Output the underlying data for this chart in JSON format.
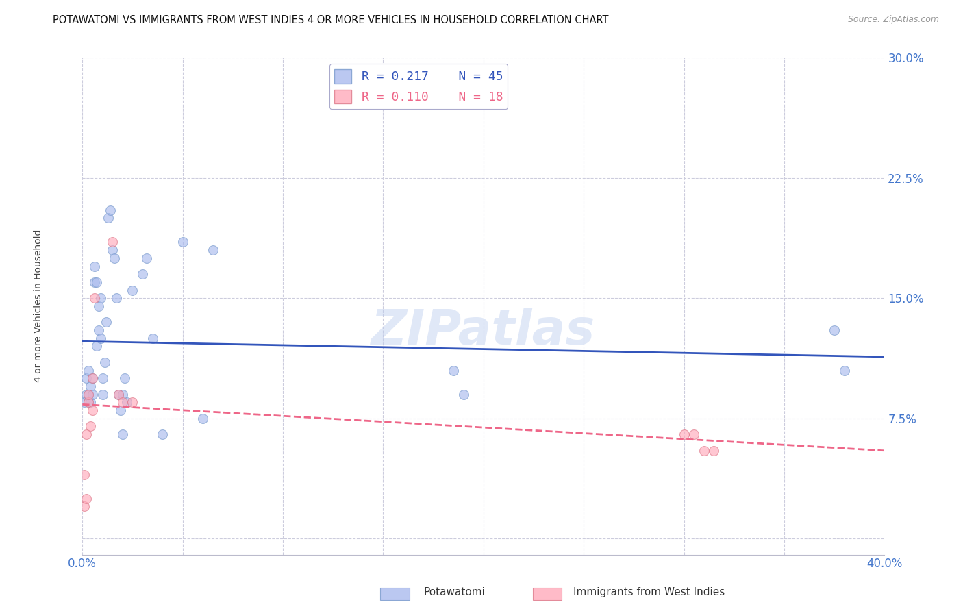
{
  "title": "POTAWATOMI VS IMMIGRANTS FROM WEST INDIES 4 OR MORE VEHICLES IN HOUSEHOLD CORRELATION CHART",
  "source": "Source: ZipAtlas.com",
  "ylabel": "4 or more Vehicles in Household",
  "xlim": [
    0.0,
    0.4
  ],
  "ylim": [
    -0.01,
    0.3
  ],
  "xticks": [
    0.0,
    0.05,
    0.1,
    0.15,
    0.2,
    0.25,
    0.3,
    0.35,
    0.4
  ],
  "yticks": [
    0.0,
    0.075,
    0.15,
    0.225,
    0.3
  ],
  "xtick_labels": [
    "0.0%",
    "",
    "",
    "",
    "",
    "",
    "",
    "",
    "40.0%"
  ],
  "ytick_labels": [
    "",
    "7.5%",
    "15.0%",
    "22.5%",
    "30.0%"
  ],
  "background_color": "#ffffff",
  "grid_color": "#ccccdd",
  "potawatomi_color": "#aabbee",
  "potawatomi_edge_color": "#7799cc",
  "immigrants_color": "#ffaabb",
  "immigrants_edge_color": "#dd7788",
  "potawatomi_line_color": "#3355bb",
  "immigrants_line_color": "#ee6688",
  "legend_label1": "Potawatomi",
  "legend_label2": "Immigrants from West Indies",
  "R1": 0.217,
  "N1": 45,
  "R2": 0.11,
  "N2": 18,
  "potawatomi_x": [
    0.001,
    0.002,
    0.002,
    0.003,
    0.003,
    0.003,
    0.004,
    0.004,
    0.005,
    0.005,
    0.006,
    0.006,
    0.007,
    0.007,
    0.008,
    0.008,
    0.009,
    0.009,
    0.01,
    0.01,
    0.011,
    0.012,
    0.013,
    0.014,
    0.015,
    0.016,
    0.017,
    0.018,
    0.019,
    0.02,
    0.02,
    0.021,
    0.022,
    0.025,
    0.03,
    0.032,
    0.035,
    0.04,
    0.05,
    0.06,
    0.065,
    0.185,
    0.19,
    0.375,
    0.38
  ],
  "potawatomi_y": [
    0.085,
    0.09,
    0.1,
    0.085,
    0.09,
    0.105,
    0.085,
    0.095,
    0.09,
    0.1,
    0.16,
    0.17,
    0.12,
    0.16,
    0.13,
    0.145,
    0.125,
    0.15,
    0.09,
    0.1,
    0.11,
    0.135,
    0.2,
    0.205,
    0.18,
    0.175,
    0.15,
    0.09,
    0.08,
    0.065,
    0.09,
    0.1,
    0.085,
    0.155,
    0.165,
    0.175,
    0.125,
    0.065,
    0.185,
    0.075,
    0.18,
    0.105,
    0.09,
    0.13,
    0.105
  ],
  "immigrants_x": [
    0.001,
    0.001,
    0.002,
    0.002,
    0.003,
    0.003,
    0.004,
    0.005,
    0.005,
    0.006,
    0.015,
    0.018,
    0.3,
    0.305,
    0.31,
    0.315,
    0.02,
    0.025
  ],
  "immigrants_y": [
    0.02,
    0.04,
    0.025,
    0.065,
    0.085,
    0.09,
    0.07,
    0.08,
    0.1,
    0.15,
    0.185,
    0.09,
    0.065,
    0.065,
    0.055,
    0.055,
    0.085,
    0.085
  ],
  "watermark": "ZIPatlas",
  "title_fontsize": 10.5,
  "axis_label_fontsize": 10,
  "tick_fontsize": 12,
  "tick_color": "#4477cc",
  "title_color": "#111111",
  "source_color": "#999999",
  "source_fontsize": 9,
  "scatter_size": 100,
  "scatter_alpha": 0.65,
  "line_width": 2.0
}
